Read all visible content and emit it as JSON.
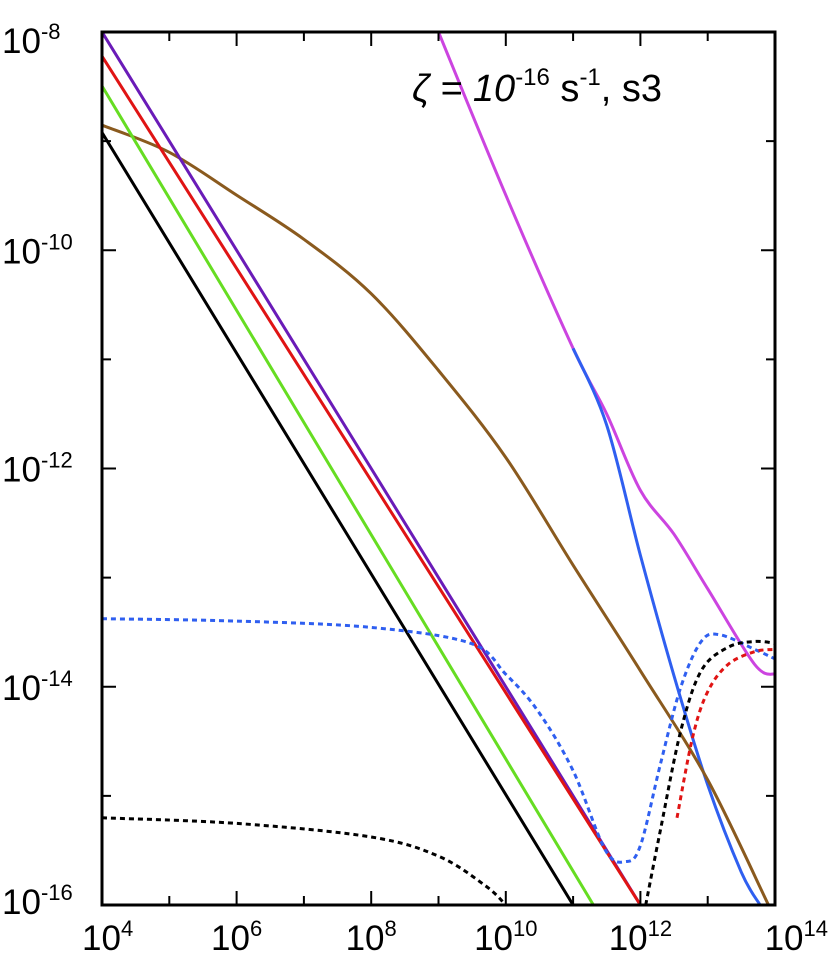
{
  "chart_data": {
    "type": "line",
    "title": "",
    "xlabel": "",
    "ylabel": "",
    "xscale": "log",
    "yscale": "log",
    "xlim": [
      10000,
      100000000000000
    ],
    "ylim": [
      1e-16,
      1e-08
    ],
    "grid": false,
    "legend": "none",
    "x_ticks": [
      {
        "base": "10",
        "exp": "4"
      },
      {
        "base": "10",
        "exp": "6"
      },
      {
        "base": "10",
        "exp": "8"
      },
      {
        "base": "10",
        "exp": "10"
      },
      {
        "base": "10",
        "exp": "12"
      },
      {
        "base": "10",
        "exp": "14"
      }
    ],
    "y_ticks": [
      {
        "base": "10",
        "exp": "-8"
      },
      {
        "base": "10",
        "exp": "-10"
      },
      {
        "base": "10",
        "exp": "-12"
      },
      {
        "base": "10",
        "exp": "-14"
      },
      {
        "base": "10",
        "exp": "-16"
      }
    ],
    "annotation": {
      "symbol": "ζ = 10",
      "exp1": "-16",
      "unit": " s",
      "exp2": "-1",
      "suffix": ", s3"
    },
    "series": [
      {
        "color": "#cc44e0",
        "style": "solid",
        "points": [
          [
            1000000000.0,
            1e-08
          ],
          [
            10000000000.0,
            3.2e-10
          ],
          [
            100000000000.0,
            1.26e-11
          ],
          [
            316000000000.0,
            3.16e-12
          ],
          [
            1000000000000.0,
            6.3e-13
          ],
          [
            3160000000000.0,
            2.5e-13
          ],
          [
            10000000000000.0,
            7.9e-14
          ],
          [
            50000000000000.0,
            1.6e-14
          ],
          [
            100000000000000.0,
            1.3e-14
          ]
        ]
      },
      {
        "color": "#2f5ff0",
        "style": "solid",
        "points": [
          [
            100000000000.0,
            1.26e-11
          ],
          [
            316000000000.0,
            2.5e-12
          ],
          [
            1000000000000.0,
            1.6e-13
          ],
          [
            3160000000000.0,
            1.26e-14
          ],
          [
            10000000000000.0,
            1.26e-15
          ],
          [
            31600000000000.0,
            2e-16
          ],
          [
            60000000000000.0,
            1e-16
          ]
        ]
      },
      {
        "color": "#8a5a1e",
        "style": "solid",
        "points": [
          [
            10000.0,
            1.4e-09
          ],
          [
            100000.0,
            7.9e-10
          ],
          [
            1000000.0,
            3.2e-10
          ],
          [
            10000000.0,
            1.26e-10
          ],
          [
            100000000.0,
            4e-11
          ],
          [
            1000000000.0,
            7.9e-12
          ],
          [
            10000000000.0,
            1.26e-12
          ],
          [
            100000000000.0,
            1.3e-13
          ],
          [
            1000000000000.0,
            1.4e-14
          ],
          [
            10000000000000.0,
            1.4e-15
          ],
          [
            80000000000000.0,
            1e-16
          ]
        ]
      },
      {
        "color": "#6a1bb8",
        "style": "solid",
        "points": [
          [
            10000.0,
            1e-08
          ],
          [
            1000000000000.0,
            1e-16
          ]
        ]
      },
      {
        "color": "#e01414",
        "style": "solid",
        "points": [
          [
            10000.0,
            6e-09
          ],
          [
            1000000000000.0,
            1e-16
          ]
        ]
      },
      {
        "color": "#66dd22",
        "style": "solid",
        "points": [
          [
            10000.0,
            3.2e-09
          ],
          [
            200000000000.0,
            1e-16
          ]
        ]
      },
      {
        "color": "#000000",
        "style": "solid",
        "points": [
          [
            10000.0,
            1.2e-09
          ],
          [
            100000000000.0,
            1e-16
          ]
        ]
      },
      {
        "color": "#2f5ff0",
        "style": "dashed",
        "points": [
          [
            10000.0,
            4.2e-14
          ],
          [
            1000000.0,
            4e-14
          ],
          [
            100000000.0,
            3.5e-14
          ],
          [
            3000000000.0,
            2.5e-14
          ],
          [
            10000000000.0,
            1.3e-14
          ],
          [
            30000000000.0,
            6e-15
          ],
          [
            100000000000.0,
            1.7e-15
          ],
          [
            300000000000.0,
            3.2e-16
          ],
          [
            600000000000.0,
            2.5e-16
          ],
          [
            1000000000000.0,
            3.5e-16
          ],
          [
            2000000000000.0,
            2e-15
          ],
          [
            4000000000000.0,
            1e-14
          ],
          [
            8000000000000.0,
            2.6e-14
          ],
          [
            15000000000000.0,
            3e-14
          ],
          [
            50000000000000.0,
            2.2e-14
          ],
          [
            100000000000000.0,
            1.8e-14
          ]
        ]
      },
      {
        "color": "#000000",
        "style": "dashed",
        "points": [
          [
            10000.0,
            6.3e-16
          ],
          [
            1000000.0,
            5.6e-16
          ],
          [
            100000000.0,
            4.2e-16
          ],
          [
            1000000000.0,
            2.8e-16
          ],
          [
            5000000000.0,
            1.5e-16
          ],
          [
            10000000000.0,
            1e-16
          ]
        ]
      },
      {
        "color": "#000000",
        "style": "dashed",
        "points": [
          [
            1200000000000.0,
            1e-16
          ],
          [
            2000000000000.0,
            5e-16
          ],
          [
            4000000000000.0,
            4e-15
          ],
          [
            8000000000000.0,
            1.4e-14
          ],
          [
            20000000000000.0,
            2.3e-14
          ],
          [
            50000000000000.0,
            2.6e-14
          ],
          [
            100000000000000.0,
            2.5e-14
          ]
        ]
      },
      {
        "color": "#e01414",
        "style": "dashed",
        "points": [
          [
            3500000000000.0,
            6.3e-16
          ],
          [
            6000000000000.0,
            3.5e-15
          ],
          [
            10000000000000.0,
            9e-15
          ],
          [
            20000000000000.0,
            1.6e-14
          ],
          [
            50000000000000.0,
            2.1e-14
          ],
          [
            100000000000000.0,
            2.2e-14
          ]
        ]
      }
    ]
  }
}
